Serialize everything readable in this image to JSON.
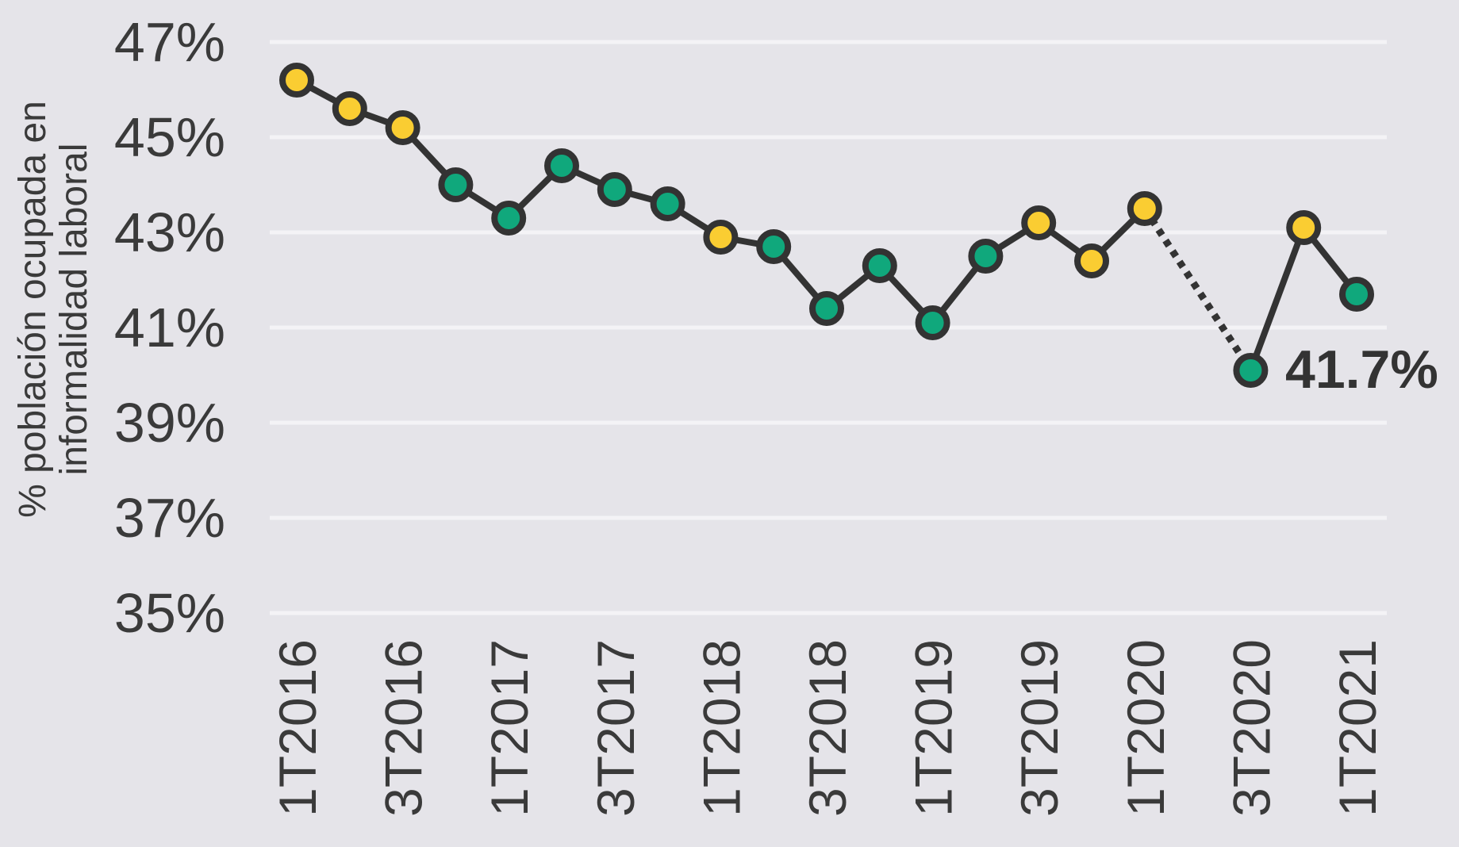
{
  "chart_data": {
    "type": "line",
    "title": "",
    "xlabel": "",
    "ylabel": "% población ocupada en informalidad laboral",
    "ylabel_lines": [
      "% población ocupada en",
      "informalidad laboral"
    ],
    "ylim": [
      35,
      47
    ],
    "y_ticks": [
      47,
      45,
      43,
      41,
      39,
      37,
      35
    ],
    "y_tick_labels": [
      "47%",
      "45%",
      "43%",
      "41%",
      "39%",
      "37%",
      "35%"
    ],
    "grid": "horizontal",
    "legend": "none",
    "categories": [
      "1T2016",
      "2T2016",
      "3T2016",
      "4T2016",
      "1T2017",
      "2T2017",
      "3T2017",
      "4T2017",
      "1T2018",
      "2T2018",
      "3T2018",
      "4T2018",
      "1T2019",
      "2T2019",
      "3T2019",
      "4T2019",
      "1T2020",
      "2T2020",
      "3T2020",
      "4T2020",
      "1T2021"
    ],
    "x_tick_labels_shown": [
      "1T2016",
      "3T2016",
      "1T2017",
      "3T2017",
      "1T2018",
      "3T2018",
      "1T2019",
      "3T2019",
      "1T2020",
      "3T2020",
      "1T2021"
    ],
    "series": [
      {
        "name": "% población ocupada en informalidad laboral",
        "values": [
          46.2,
          45.6,
          45.2,
          44.0,
          43.3,
          44.4,
          43.9,
          43.6,
          42.9,
          42.7,
          41.4,
          42.3,
          41.1,
          42.5,
          43.2,
          42.4,
          43.5,
          null,
          40.1,
          43.1,
          41.7
        ],
        "point_colors": [
          "yellow",
          "yellow",
          "yellow",
          "green",
          "green",
          "green",
          "green",
          "green",
          "yellow",
          "green",
          "green",
          "green",
          "green",
          "green",
          "yellow",
          "yellow",
          "yellow",
          null,
          "green",
          "yellow",
          "green"
        ]
      }
    ],
    "missing_data": {
      "category": "2T2020",
      "connector_style": "dotted"
    },
    "annotation": {
      "text": "41.7%",
      "target_category": "1T2021"
    },
    "colors": {
      "yellow": "#FACD32",
      "green": "#10A87C",
      "line": "#333333",
      "text": "#3A3A3A",
      "background": "#E5E4E9",
      "gridline": "#F4F3F6"
    }
  }
}
